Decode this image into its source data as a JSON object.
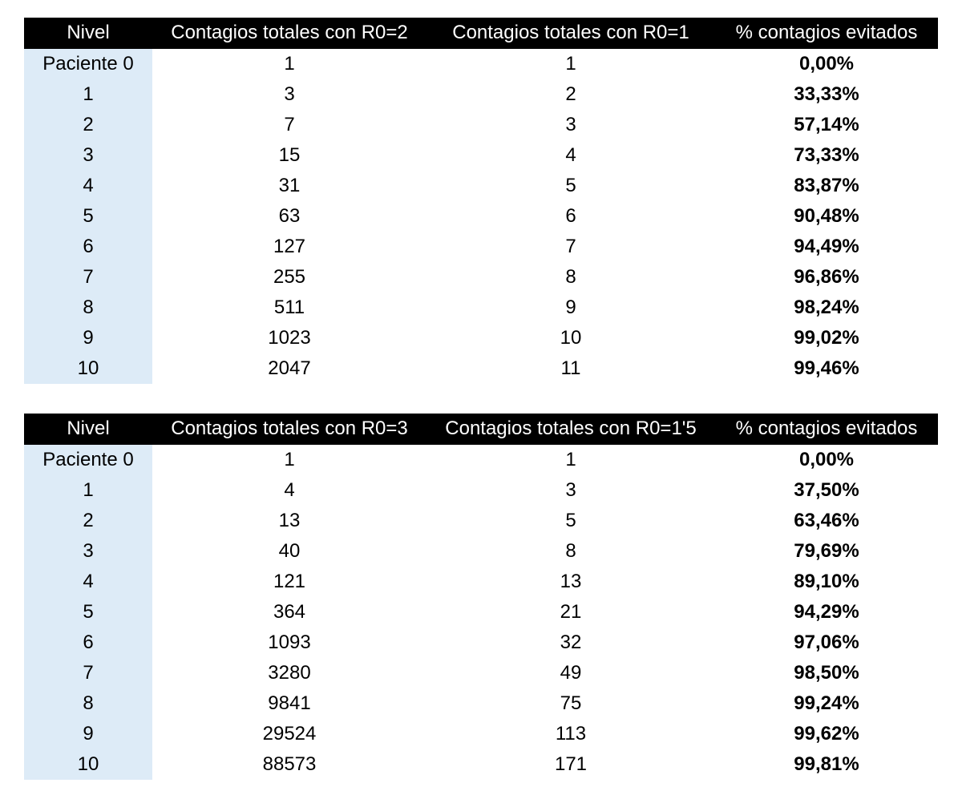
{
  "tables": [
    {
      "headers": [
        "Nivel",
        "Contagios totales con R0=2",
        "Contagios totales con R0=1",
        "% contagios evitados"
      ],
      "rows": [
        [
          "Paciente 0",
          "1",
          "1",
          "0,00%"
        ],
        [
          "1",
          "3",
          "2",
          "33,33%"
        ],
        [
          "2",
          "7",
          "3",
          "57,14%"
        ],
        [
          "3",
          "15",
          "4",
          "73,33%"
        ],
        [
          "4",
          "31",
          "5",
          "83,87%"
        ],
        [
          "5",
          "63",
          "6",
          "90,48%"
        ],
        [
          "6",
          "127",
          "7",
          "94,49%"
        ],
        [
          "7",
          "255",
          "8",
          "96,86%"
        ],
        [
          "8",
          "511",
          "9",
          "98,24%"
        ],
        [
          "9",
          "1023",
          "10",
          "99,02%"
        ],
        [
          "10",
          "2047",
          "11",
          "99,46%"
        ]
      ]
    },
    {
      "headers": [
        "Nivel",
        "Contagios totales con R0=3",
        "Contagios totales con R0=1'5",
        "% contagios evitados"
      ],
      "rows": [
        [
          "Paciente 0",
          "1",
          "1",
          "0,00%"
        ],
        [
          "1",
          "4",
          "3",
          "37,50%"
        ],
        [
          "2",
          "13",
          "5",
          "63,46%"
        ],
        [
          "3",
          "40",
          "8",
          "79,69%"
        ],
        [
          "4",
          "121",
          "13",
          "89,10%"
        ],
        [
          "5",
          "364",
          "21",
          "94,29%"
        ],
        [
          "6",
          "1093",
          "32",
          "97,06%"
        ],
        [
          "7",
          "3280",
          "49",
          "98,50%"
        ],
        [
          "8",
          "9841",
          "75",
          "99,24%"
        ],
        [
          "9",
          "29524",
          "113",
          "99,62%"
        ],
        [
          "10",
          "88573",
          "171",
          "99,81%"
        ]
      ]
    }
  ]
}
